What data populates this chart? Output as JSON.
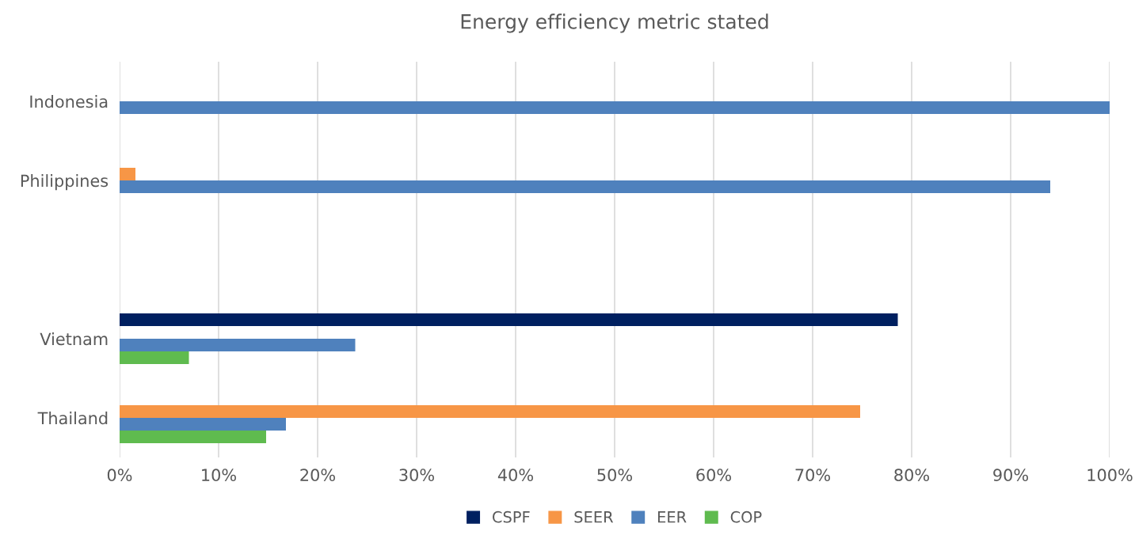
{
  "chart_data": {
    "type": "bar",
    "orientation": "horizontal",
    "title": "Energy efficiency metric stated",
    "categories": [
      "Indonesia",
      "Philippines",
      null,
      "Vietnam",
      "Thailand"
    ],
    "series": [
      {
        "name": "CSPF",
        "color": "#002060",
        "values": [
          null,
          null,
          null,
          78.6,
          null
        ]
      },
      {
        "name": "SEER",
        "color": "#f79646",
        "values": [
          null,
          1.6,
          null,
          null,
          74.8
        ]
      },
      {
        "name": "EER",
        "color": "#4f81bd",
        "values": [
          100,
          94.0,
          null,
          23.8,
          16.8
        ]
      },
      {
        "name": "COP",
        "color": "#5fbb4f",
        "values": [
          null,
          null,
          null,
          7.0,
          14.8
        ]
      }
    ],
    "xlim": [
      0,
      100
    ],
    "xticks": [
      {
        "value": 0,
        "label": "0%"
      },
      {
        "value": 10,
        "label": "10%"
      },
      {
        "value": 20,
        "label": "20%"
      },
      {
        "value": 30,
        "label": "30%"
      },
      {
        "value": 40,
        "label": "40%"
      },
      {
        "value": 50,
        "label": "50%"
      },
      {
        "value": 60,
        "label": "60%"
      },
      {
        "value": 70,
        "label": "70%"
      },
      {
        "value": 80,
        "label": "80%"
      },
      {
        "value": 90,
        "label": "90%"
      },
      {
        "value": 100,
        "label": "100%"
      }
    ],
    "grid": "x",
    "legend": "bottom"
  }
}
